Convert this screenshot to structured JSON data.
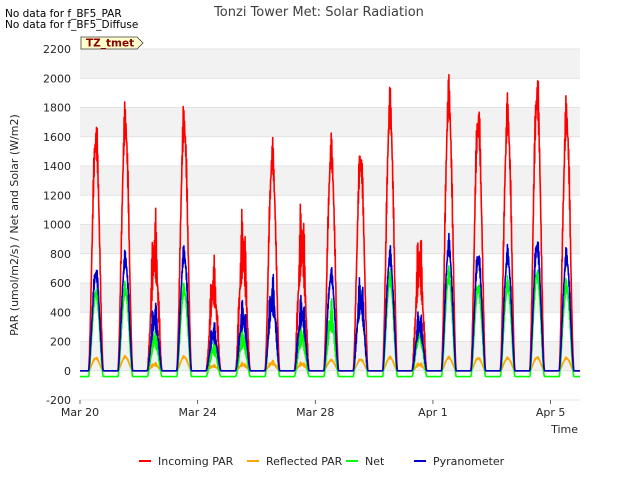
{
  "notes": [
    "No data for f_BF5_PAR",
    "No data for f_BF5_Diffuse"
  ],
  "chart_data": {
    "type": "line",
    "title": "Tonzi Tower Met: Solar Radiation",
    "xlabel": "Time",
    "ylabel": "PAR (umol/m2/s) / Net and Solar (W/m2)",
    "ylim": [
      -200,
      2200
    ],
    "yticks": [
      -200,
      0,
      200,
      400,
      600,
      800,
      1000,
      1200,
      1400,
      1600,
      1800,
      2000,
      2200
    ],
    "xlim": [
      "2023-03-20",
      "2023-04-06"
    ],
    "xticks": [
      {
        "date": "2023-03-20",
        "label": "Mar 20"
      },
      {
        "date": "2023-03-24",
        "label": "Mar 24"
      },
      {
        "date": "2023-03-28",
        "label": "Mar 28"
      },
      {
        "date": "2023-04-01",
        "label": "Apr 1"
      },
      {
        "date": "2023-04-05",
        "label": "Apr 5"
      }
    ],
    "grid": true,
    "annotation": "TZ_tmet",
    "legend_position": "bottom",
    "days": [
      "2023-03-20",
      "2023-03-21",
      "2023-03-22",
      "2023-03-23",
      "2023-03-24",
      "2023-03-25",
      "2023-03-26",
      "2023-03-27",
      "2023-03-28",
      "2023-03-29",
      "2023-03-30",
      "2023-03-31",
      "2023-04-01",
      "2023-04-02",
      "2023-04-03",
      "2023-04-04",
      "2023-04-05"
    ],
    "series": [
      {
        "name": "Incoming PAR",
        "color": "#ff0000",
        "night": 0,
        "daily_peak": [
          1760,
          1880,
          1160,
          1870,
          820,
          1170,
          1620,
          1240,
          1650,
          1600,
          1980,
          1040,
          2060,
          1900,
          1930,
          2100,
          1920
        ]
      },
      {
        "name": "Reflected PAR",
        "color": "#ffa500",
        "night": 0,
        "daily_peak": [
          95,
          105,
          60,
          105,
          45,
          60,
          75,
          65,
          80,
          85,
          100,
          60,
          100,
          95,
          95,
          100,
          95
        ]
      },
      {
        "name": "Net",
        "color": "#00ff00",
        "night": -40,
        "daily_peak": [
          600,
          620,
          330,
          620,
          230,
          320,
          570,
          350,
          520,
          600,
          700,
          400,
          720,
          640,
          650,
          740,
          640
        ]
      },
      {
        "name": "Pyranometer",
        "color": "#0000cc",
        "night": 0,
        "daily_peak": [
          740,
          840,
          510,
          880,
          360,
          520,
          700,
          560,
          720,
          700,
          860,
          450,
          940,
          860,
          870,
          950,
          860
        ]
      }
    ]
  }
}
